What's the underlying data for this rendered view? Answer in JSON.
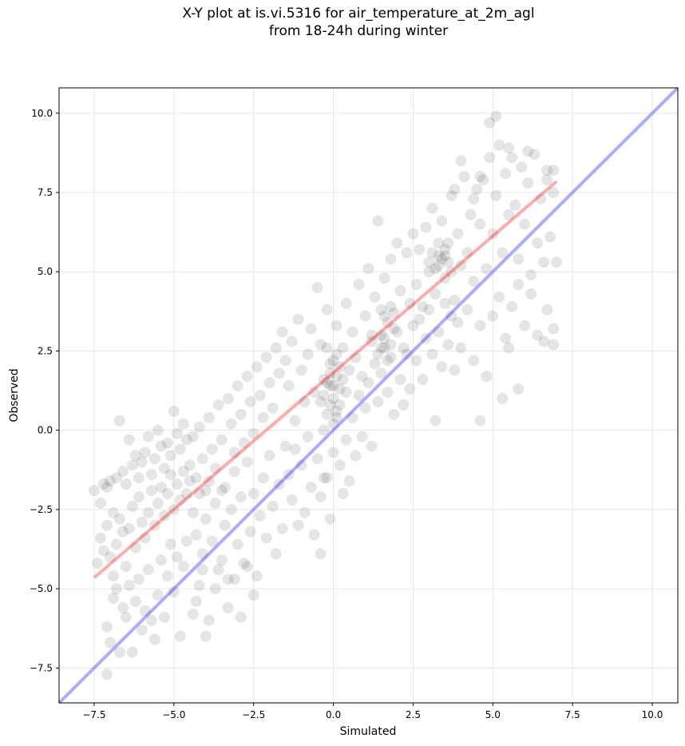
{
  "chart_data": {
    "type": "scatter",
    "title_line1": "X-Y plot at is.vi.5316 for air_temperature_at_2m_agl",
    "title_line2": "from 18-24h during winter",
    "xlabel": "Simulated",
    "ylabel": "Observed",
    "xlim": [
      -8.6,
      10.8
    ],
    "ylim": [
      -8.6,
      10.8
    ],
    "xticks": [
      -7.5,
      -5.0,
      -2.5,
      0.0,
      2.5,
      5.0,
      7.5,
      10.0
    ],
    "yticks": [
      -7.5,
      -5.0,
      -2.5,
      0.0,
      2.5,
      5.0,
      7.5,
      10.0
    ],
    "xtick_labels": [
      "−7.5",
      "−5.0",
      "−2.5",
      "0.0",
      "2.5",
      "5.0",
      "7.5",
      "10.0"
    ],
    "ytick_labels": [
      "−7.5",
      "−5.0",
      "−2.5",
      "0.0",
      "2.5",
      "5.0",
      "7.5",
      "10.0"
    ],
    "grid": true,
    "point_color": "#000000",
    "point_opacity": 0.1,
    "reference_line": {
      "x": [
        -8.6,
        10.8
      ],
      "y": [
        -8.6,
        10.8
      ],
      "color": "#0000ff"
    },
    "fit_line": {
      "x": [
        -7.5,
        7.0
      ],
      "y": [
        -4.65,
        7.85
      ],
      "color": "#ff0000"
    },
    "points": [
      [
        -7.5,
        -1.9
      ],
      [
        -7.3,
        -2.3
      ],
      [
        -7.2,
        -1.7
      ],
      [
        -7.1,
        -1.8
      ],
      [
        -7.0,
        -1.6
      ],
      [
        -6.9,
        -2.6
      ],
      [
        -6.8,
        -1.5
      ],
      [
        -6.7,
        0.3
      ],
      [
        -6.6,
        -1.3
      ],
      [
        -6.5,
        -1.7
      ],
      [
        -6.4,
        -0.3
      ],
      [
        -6.3,
        -1.1
      ],
      [
        -6.2,
        -0.8
      ],
      [
        -6.1,
        -1.5
      ],
      [
        -6.0,
        -1.0
      ],
      [
        -5.9,
        -0.7
      ],
      [
        -5.8,
        -0.2
      ],
      [
        -5.7,
        -1.4
      ],
      [
        -5.6,
        -0.9
      ],
      [
        -5.5,
        0.0
      ],
      [
        -5.4,
        -0.5
      ],
      [
        -5.3,
        -1.2
      ],
      [
        -5.2,
        -0.4
      ],
      [
        -5.1,
        -0.8
      ],
      [
        -5.0,
        0.6
      ],
      [
        -4.9,
        -0.1
      ],
      [
        -4.8,
        -0.6
      ],
      [
        -4.7,
        0.2
      ],
      [
        -4.6,
        -0.3
      ],
      [
        -4.5,
        -1.1
      ],
      [
        -7.4,
        -4.2
      ],
      [
        -7.3,
        -3.4
      ],
      [
        -7.2,
        -3.8
      ],
      [
        -7.1,
        -3.0
      ],
      [
        -7.0,
        -4.0
      ],
      [
        -6.9,
        -4.6
      ],
      [
        -6.8,
        -3.6
      ],
      [
        -6.7,
        -2.8
      ],
      [
        -6.6,
        -3.2
      ],
      [
        -6.5,
        -4.3
      ],
      [
        -6.4,
        -3.1
      ],
      [
        -6.3,
        -2.4
      ],
      [
        -6.2,
        -3.7
      ],
      [
        -6.1,
        -2.1
      ],
      [
        -6.0,
        -2.9
      ],
      [
        -5.9,
        -3.4
      ],
      [
        -5.8,
        -2.6
      ],
      [
        -5.7,
        -1.9
      ],
      [
        -5.6,
        -3.0
      ],
      [
        -5.5,
        -2.3
      ],
      [
        -5.4,
        -1.8
      ],
      [
        -5.3,
        -2.7
      ],
      [
        -5.2,
        -2.0
      ],
      [
        -5.1,
        -1.4
      ],
      [
        -5.0,
        -2.5
      ],
      [
        -4.9,
        -1.7
      ],
      [
        -4.8,
        -2.2
      ],
      [
        -4.7,
        -1.3
      ],
      [
        -4.6,
        -2.0
      ],
      [
        -4.5,
        -1.6
      ],
      [
        -7.1,
        -6.2
      ],
      [
        -7.0,
        -6.7
      ],
      [
        -6.9,
        -5.3
      ],
      [
        -6.8,
        -5.0
      ],
      [
        -6.7,
        -7.0
      ],
      [
        -6.6,
        -5.6
      ],
      [
        -6.5,
        -5.9
      ],
      [
        -6.4,
        -4.9
      ],
      [
        -6.3,
        -7.0
      ],
      [
        -6.2,
        -5.4
      ],
      [
        -6.1,
        -4.7
      ],
      [
        -6.0,
        -6.3
      ],
      [
        -5.9,
        -5.7
      ],
      [
        -5.8,
        -4.4
      ],
      [
        -5.7,
        -6.0
      ],
      [
        -5.6,
        -6.6
      ],
      [
        -5.5,
        -5.2
      ],
      [
        -5.4,
        -4.1
      ],
      [
        -5.3,
        -5.9
      ],
      [
        -5.2,
        -4.6
      ],
      [
        -5.1,
        -3.6
      ],
      [
        -5.0,
        -5.1
      ],
      [
        -4.9,
        -4.0
      ],
      [
        -4.8,
        -6.5
      ],
      [
        -4.7,
        -4.3
      ],
      [
        -4.6,
        -3.5
      ],
      [
        -4.4,
        -5.8
      ],
      [
        -4.2,
        -4.9
      ],
      [
        -4.0,
        -6.5
      ],
      [
        -7.1,
        -7.7
      ],
      [
        -4.4,
        -0.2
      ],
      [
        -4.3,
        -1.5
      ],
      [
        -4.2,
        0.1
      ],
      [
        -4.1,
        -0.9
      ],
      [
        -4.0,
        -1.9
      ],
      [
        -3.9,
        0.4
      ],
      [
        -3.8,
        -0.6
      ],
      [
        -3.7,
        -1.2
      ],
      [
        -3.6,
        0.8
      ],
      [
        -3.5,
        -0.3
      ],
      [
        -3.4,
        -1.8
      ],
      [
        -3.3,
        1.0
      ],
      [
        -3.2,
        0.2
      ],
      [
        -3.1,
        -0.7
      ],
      [
        -3.0,
        1.4
      ],
      [
        -2.9,
        0.5
      ],
      [
        -2.8,
        -0.4
      ],
      [
        -2.7,
        1.7
      ],
      [
        -2.6,
        0.9
      ],
      [
        -2.5,
        -0.1
      ],
      [
        -2.4,
        2.0
      ],
      [
        -2.3,
        1.1
      ],
      [
        -2.2,
        0.4
      ],
      [
        -2.1,
        2.3
      ],
      [
        -2.0,
        1.5
      ],
      [
        -1.9,
        0.7
      ],
      [
        -1.8,
        2.6
      ],
      [
        -1.7,
        1.8
      ],
      [
        -1.6,
        3.1
      ],
      [
        -1.5,
        2.2
      ],
      [
        -4.4,
        -2.6
      ],
      [
        -4.3,
        -3.3
      ],
      [
        -4.2,
        -2.0
      ],
      [
        -4.1,
        -3.9
      ],
      [
        -4.0,
        -2.8
      ],
      [
        -3.9,
        -1.6
      ],
      [
        -3.8,
        -3.5
      ],
      [
        -3.7,
        -2.3
      ],
      [
        -3.6,
        -4.4
      ],
      [
        -3.5,
        -1.9
      ],
      [
        -3.4,
        -3.0
      ],
      [
        -3.3,
        -4.7
      ],
      [
        -3.2,
        -2.5
      ],
      [
        -3.1,
        -1.3
      ],
      [
        -3.0,
        -3.6
      ],
      [
        -2.9,
        -2.1
      ],
      [
        -2.8,
        -4.2
      ],
      [
        -2.7,
        -1.0
      ],
      [
        -2.6,
        -3.2
      ],
      [
        -2.5,
        -2.0
      ],
      [
        -2.4,
        -4.6
      ],
      [
        -2.3,
        -2.7
      ],
      [
        -2.2,
        -1.5
      ],
      [
        -2.1,
        -3.4
      ],
      [
        -2.0,
        -0.8
      ],
      [
        -1.9,
        -2.4
      ],
      [
        -1.8,
        -3.9
      ],
      [
        -1.7,
        -1.7
      ],
      [
        -1.6,
        -3.1
      ],
      [
        -1.5,
        -0.5
      ],
      [
        -4.3,
        -5.4
      ],
      [
        -4.1,
        -4.4
      ],
      [
        -3.9,
        -6.0
      ],
      [
        -3.7,
        -5.0
      ],
      [
        -3.5,
        -4.1
      ],
      [
        -3.3,
        -5.6
      ],
      [
        -3.1,
        -4.7
      ],
      [
        -2.9,
        -5.9
      ],
      [
        -2.7,
        -4.3
      ],
      [
        -2.5,
        -5.2
      ],
      [
        -1.4,
        1.4
      ],
      [
        -1.3,
        2.8
      ],
      [
        -1.2,
        0.3
      ],
      [
        -1.1,
        3.5
      ],
      [
        -1.0,
        1.9
      ],
      [
        -0.9,
        0.9
      ],
      [
        -0.8,
        2.4
      ],
      [
        -0.7,
        3.2
      ],
      [
        -0.6,
        1.2
      ],
      [
        -0.5,
        4.5
      ],
      [
        -0.4,
        2.7
      ],
      [
        -0.3,
        1.6
      ],
      [
        -0.2,
        3.8
      ],
      [
        -0.1,
        2.1
      ],
      [
        0.0,
        1.4
      ],
      [
        0.1,
        3.3
      ],
      [
        0.2,
        0.8
      ],
      [
        0.3,
        2.6
      ],
      [
        0.4,
        4.0
      ],
      [
        0.5,
        1.9
      ],
      [
        -1.4,
        -1.4
      ],
      [
        -1.3,
        -2.2
      ],
      [
        -1.2,
        -0.6
      ],
      [
        -1.1,
        -3.0
      ],
      [
        -1.0,
        -1.1
      ],
      [
        -0.9,
        -2.6
      ],
      [
        -0.8,
        -0.2
      ],
      [
        -0.7,
        -1.8
      ],
      [
        -0.6,
        -3.3
      ],
      [
        -0.5,
        -0.9
      ],
      [
        -0.4,
        -2.1
      ],
      [
        -0.3,
        0.0
      ],
      [
        -0.2,
        -1.5
      ],
      [
        -0.1,
        -2.8
      ],
      [
        0.0,
        -0.7
      ],
      [
        0.1,
        0.4
      ],
      [
        0.2,
        -1.1
      ],
      [
        0.3,
        -2.0
      ],
      [
        0.4,
        -0.3
      ],
      [
        0.5,
        -1.6
      ],
      [
        -0.3,
        -1.5
      ],
      [
        -0.4,
        -3.9
      ],
      [
        -0.2,
        0.5
      ],
      [
        -0.1,
        1.8
      ],
      [
        0.0,
        1.0
      ],
      [
        0.1,
        1.7
      ],
      [
        -0.1,
        0.8
      ],
      [
        0.2,
        1.3
      ],
      [
        0.0,
        2.2
      ],
      [
        -0.2,
        1.5
      ],
      [
        0.3,
        1.6
      ],
      [
        -0.3,
        1.1
      ],
      [
        0.1,
        0.6
      ],
      [
        -0.1,
        1.4
      ],
      [
        0.2,
        2.0
      ],
      [
        0.0,
        0.2
      ],
      [
        -0.2,
        2.6
      ],
      [
        0.1,
        2.4
      ],
      [
        -0.4,
        0.9
      ],
      [
        0.4,
        1.2
      ],
      [
        0.6,
        3.1
      ],
      [
        0.7,
        2.3
      ],
      [
        0.8,
        4.6
      ],
      [
        0.9,
        1.7
      ],
      [
        1.0,
        3.6
      ],
      [
        1.1,
        5.1
      ],
      [
        1.2,
        2.8
      ],
      [
        1.3,
        4.2
      ],
      [
        1.4,
        6.6
      ],
      [
        1.5,
        3.0
      ],
      [
        1.6,
        4.8
      ],
      [
        1.7,
        2.2
      ],
      [
        1.8,
        5.4
      ],
      [
        1.9,
        3.7
      ],
      [
        2.0,
        5.9
      ],
      [
        2.1,
        4.4
      ],
      [
        2.2,
        2.6
      ],
      [
        2.3,
        5.6
      ],
      [
        2.4,
        4.0
      ],
      [
        2.5,
        6.2
      ],
      [
        0.6,
        0.4
      ],
      [
        0.7,
        -0.8
      ],
      [
        0.8,
        1.1
      ],
      [
        0.9,
        -0.2
      ],
      [
        1.0,
        0.7
      ],
      [
        1.1,
        1.5
      ],
      [
        1.2,
        -0.5
      ],
      [
        1.3,
        2.1
      ],
      [
        1.4,
        0.9
      ],
      [
        1.5,
        1.8
      ],
      [
        1.6,
        2.6
      ],
      [
        1.7,
        1.2
      ],
      [
        1.8,
        2.3
      ],
      [
        1.9,
        0.5
      ],
      [
        2.0,
        3.1
      ],
      [
        2.1,
        1.6
      ],
      [
        2.2,
        0.8
      ],
      [
        2.3,
        2.4
      ],
      [
        2.4,
        1.3
      ],
      [
        2.5,
        3.3
      ],
      [
        1.2,
        3.0
      ],
      [
        1.4,
        2.4
      ],
      [
        1.5,
        3.8
      ],
      [
        1.6,
        2.9
      ],
      [
        1.7,
        3.4
      ],
      [
        1.8,
        2.7
      ],
      [
        1.9,
        3.2
      ],
      [
        1.6,
        3.6
      ],
      [
        1.5,
        2.6
      ],
      [
        1.8,
        3.9
      ],
      [
        2.6,
        4.6
      ],
      [
        2.7,
        5.7
      ],
      [
        2.8,
        3.9
      ],
      [
        2.9,
        6.4
      ],
      [
        3.0,
        5.0
      ],
      [
        3.1,
        7.0
      ],
      [
        3.2,
        4.3
      ],
      [
        3.3,
        5.5
      ],
      [
        3.4,
        6.6
      ],
      [
        3.5,
        4.8
      ],
      [
        3.6,
        5.9
      ],
      [
        3.7,
        7.4
      ],
      [
        3.8,
        4.1
      ],
      [
        3.9,
        6.2
      ],
      [
        4.0,
        5.2
      ],
      [
        4.1,
        8.0
      ],
      [
        4.2,
        5.6
      ],
      [
        4.3,
        6.8
      ],
      [
        4.4,
        4.7
      ],
      [
        4.5,
        7.6
      ],
      [
        3.0,
        5.3
      ],
      [
        3.1,
        5.6
      ],
      [
        3.2,
        5.1
      ],
      [
        3.3,
        5.9
      ],
      [
        3.4,
        5.4
      ],
      [
        3.5,
        5.7
      ],
      [
        3.6,
        5.3
      ],
      [
        3.7,
        5.0
      ],
      [
        3.3,
        5.2
      ],
      [
        3.5,
        5.5
      ],
      [
        2.6,
        2.2
      ],
      [
        2.7,
        3.5
      ],
      [
        2.8,
        1.6
      ],
      [
        2.9,
        2.9
      ],
      [
        3.0,
        3.8
      ],
      [
        3.1,
        2.4
      ],
      [
        3.2,
        0.3
      ],
      [
        3.3,
        3.1
      ],
      [
        3.4,
        2.0
      ],
      [
        3.5,
        4.0
      ],
      [
        3.6,
        2.7
      ],
      [
        3.7,
        3.6
      ],
      [
        3.8,
        1.9
      ],
      [
        3.9,
        3.4
      ],
      [
        4.0,
        2.6
      ],
      [
        4.2,
        3.8
      ],
      [
        4.4,
        2.2
      ],
      [
        4.6,
        3.3
      ],
      [
        4.6,
        0.3
      ],
      [
        4.8,
        1.7
      ],
      [
        4.6,
        6.5
      ],
      [
        4.7,
        7.9
      ],
      [
        4.8,
        5.1
      ],
      [
        4.9,
        8.6
      ],
      [
        5.0,
        6.2
      ],
      [
        5.1,
        7.4
      ],
      [
        5.2,
        9.0
      ],
      [
        5.3,
        5.6
      ],
      [
        5.4,
        8.1
      ],
      [
        5.5,
        6.8
      ],
      [
        5.6,
        8.6
      ],
      [
        5.7,
        7.1
      ],
      [
        5.8,
        5.4
      ],
      [
        5.9,
        8.3
      ],
      [
        6.0,
        6.5
      ],
      [
        6.1,
        7.8
      ],
      [
        6.2,
        4.9
      ],
      [
        6.3,
        8.7
      ],
      [
        6.4,
        5.9
      ],
      [
        6.5,
        7.3
      ],
      [
        6.6,
        5.3
      ],
      [
        6.7,
        8.2
      ],
      [
        6.8,
        6.1
      ],
      [
        6.9,
        7.5
      ],
      [
        5.0,
        3.6
      ],
      [
        5.2,
        4.2
      ],
      [
        5.4,
        2.9
      ],
      [
        5.6,
        3.9
      ],
      [
        5.8,
        4.6
      ],
      [
        6.0,
        3.3
      ],
      [
        6.2,
        4.3
      ],
      [
        6.4,
        3.0
      ],
      [
        6.6,
        2.8
      ],
      [
        6.7,
        3.8
      ],
      [
        6.9,
        3.2
      ],
      [
        7.0,
        5.3
      ],
      [
        6.9,
        2.7
      ],
      [
        5.3,
        1.0
      ],
      [
        5.8,
        1.3
      ],
      [
        5.5,
        2.6
      ],
      [
        4.0,
        8.5
      ],
      [
        4.6,
        8.0
      ],
      [
        4.9,
        9.7
      ],
      [
        5.1,
        9.9
      ],
      [
        5.5,
        8.9
      ],
      [
        6.1,
        8.8
      ],
      [
        6.7,
        7.9
      ],
      [
        6.9,
        8.2
      ],
      [
        4.4,
        7.3
      ],
      [
        3.8,
        7.6
      ]
    ]
  }
}
